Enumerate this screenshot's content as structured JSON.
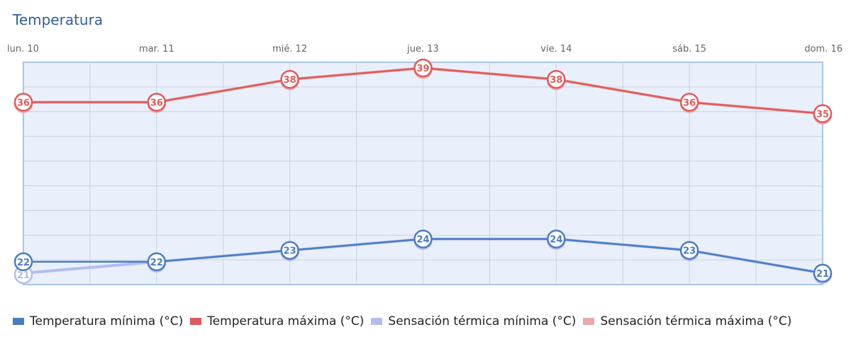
{
  "title": "Temperatura",
  "chart_data": {
    "type": "line",
    "categories": [
      "lun. 10",
      "mar. 11",
      "mié. 12",
      "jue. 13",
      "vie. 14",
      "sáb. 15",
      "dom. 16"
    ],
    "ylim": [
      20,
      39.5
    ],
    "grid": true,
    "legend_position": "bottom",
    "series": [
      {
        "name": "Temperatura mínima (°C)",
        "values": [
          22,
          22,
          23,
          24,
          24,
          23,
          21
        ],
        "color": "#4a7cc4",
        "labels": true
      },
      {
        "name": "Temperatura máxima (°C)",
        "values": [
          36,
          36,
          38,
          39,
          38,
          36,
          35
        ],
        "color": "#e05a5a",
        "labels": true
      },
      {
        "name": "Sensación térmica mínima (°C)",
        "values": [
          21,
          22,
          23,
          24,
          24,
          23,
          21
        ],
        "color": "#b3bdee",
        "labels": false
      },
      {
        "name": "Sensación térmica máxima (°C)",
        "values": [
          36,
          36,
          38,
          39,
          38,
          36,
          35
        ],
        "color": "#e8aaaa",
        "labels": false
      }
    ],
    "colors": {
      "plot_background": "#e9f0fb",
      "plot_border": "#a8c6e8",
      "grid": "#c8d3e0"
    }
  }
}
